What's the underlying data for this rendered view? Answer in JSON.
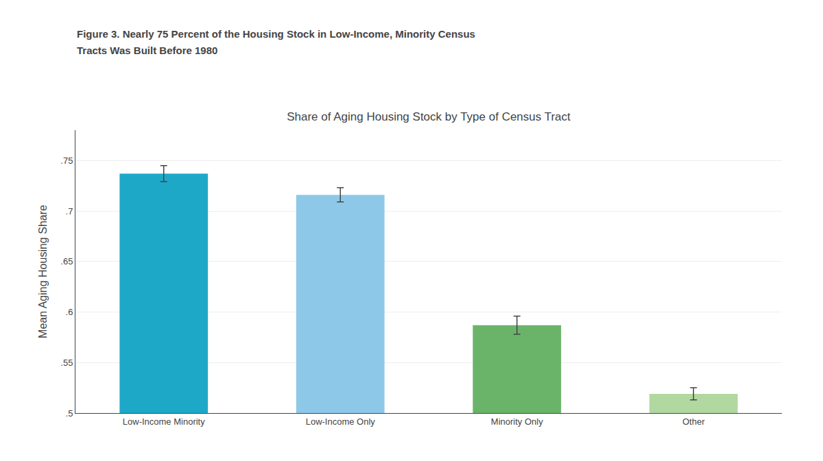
{
  "chart_data": {
    "type": "bar",
    "title": "Share of Aging Housing Stock by Type of Census Tract",
    "annotations": [
      "Figure 3. Nearly 75 Percent of the Housing Stock in Low-Income, Minority Census",
      "Tracts Was Built Before 1980"
    ],
    "categories": [
      "Low-Income Minority",
      "Low-Income Only",
      "Minority Only",
      "Other"
    ],
    "values": [
      0.737,
      0.716,
      0.587,
      0.519
    ],
    "errors": [
      0.008,
      0.007,
      0.009,
      0.006
    ],
    "colors": [
      "#1ea8c8",
      "#8ec8e8",
      "#6ab46a",
      "#b0d8a0"
    ],
    "ylabel": "Mean Aging Housing Share",
    "ylim": [
      0.5,
      0.78
    ],
    "yticks": [
      {
        "value": 0.5,
        "label": ".5"
      },
      {
        "value": 0.55,
        "label": ".55"
      },
      {
        "value": 0.6,
        "label": ".6"
      },
      {
        "value": 0.65,
        "label": ".65"
      },
      {
        "value": 0.7,
        "label": ".7"
      },
      {
        "value": 0.75,
        "label": ".75"
      }
    ],
    "grid": true
  }
}
